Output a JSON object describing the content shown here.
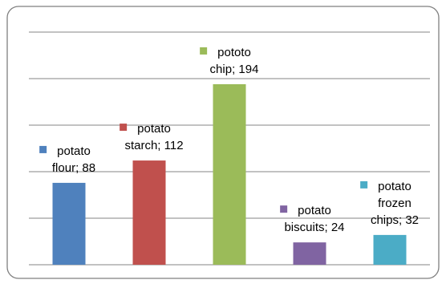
{
  "chart_data": {
    "type": "bar",
    "categories": [
      "potato flour",
      "potato starch",
      "pototo chip",
      "potato biscuits",
      "potato frozen chips"
    ],
    "values": [
      88,
      112,
      194,
      24,
      32
    ],
    "data_labels": [
      [
        "potato",
        "flour; 88"
      ],
      [
        "potato",
        "starch; 112"
      ],
      [
        "pototo",
        "chip; 194"
      ],
      [
        "potato",
        "biscuits; 24"
      ],
      [
        "potato",
        "frozen",
        "chips; 32"
      ]
    ],
    "colors": [
      "#4f81bd",
      "#c0504d",
      "#9bbb59",
      "#8064a2",
      "#4bacc6"
    ],
    "ylim": [
      0,
      250
    ],
    "ytick_step": 50,
    "grid": true,
    "title": "",
    "xlabel": "",
    "ylabel": ""
  }
}
